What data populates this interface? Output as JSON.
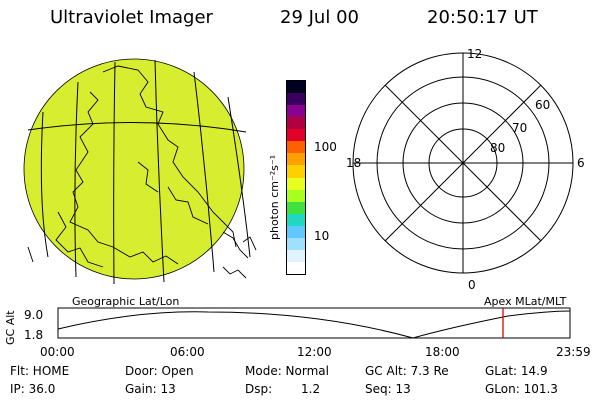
{
  "header": {
    "instrument": "Ultraviolet Imager",
    "date": "29 Jul 00",
    "time": "20:50:17 UT"
  },
  "globe": {
    "fill_color": "#d7ee30",
    "label": "Geographic Lat/Lon"
  },
  "colorbar": {
    "unit_label": "photon cm⁻²s⁻¹",
    "ticks": [
      "100",
      "10"
    ],
    "colors": [
      "#000020",
      "#3a0060",
      "#8a0090",
      "#b00040",
      "#e0002a",
      "#ff6000",
      "#ffa000",
      "#ffd000",
      "#e8ff20",
      "#a8ff20",
      "#40e040",
      "#20d8c0",
      "#60c8ff",
      "#a0e0ff",
      "#e0f4ff",
      "#ffffff"
    ]
  },
  "polar": {
    "label": "Apex MLat/MLT",
    "mlt_labels": {
      "top": "12",
      "left": "18",
      "right": "6",
      "bottom": "0"
    },
    "lat_labels": [
      "60",
      "70",
      "80"
    ]
  },
  "timeline": {
    "y_axis_label": "GC Alt",
    "y_ticks": [
      "9.0",
      "1.8"
    ],
    "x_ticks": [
      "00:00",
      "06:00",
      "12:00",
      "18:00",
      "23:59"
    ],
    "marker_color": "#e00000",
    "marker_time": "20:50"
  },
  "status": {
    "flt": "Flt: HOME",
    "ip": "IP: 36.0",
    "door": "Door: Open",
    "gain": "Gain: 13",
    "mode": "Mode: Normal",
    "dsp_label": "Dsp:",
    "dsp_value": "1.2",
    "gc_alt": "GC Alt: 7.3 Re",
    "seq": "Seq: 13",
    "glat": "GLat: 14.9",
    "glon": "GLon: 101.3"
  }
}
